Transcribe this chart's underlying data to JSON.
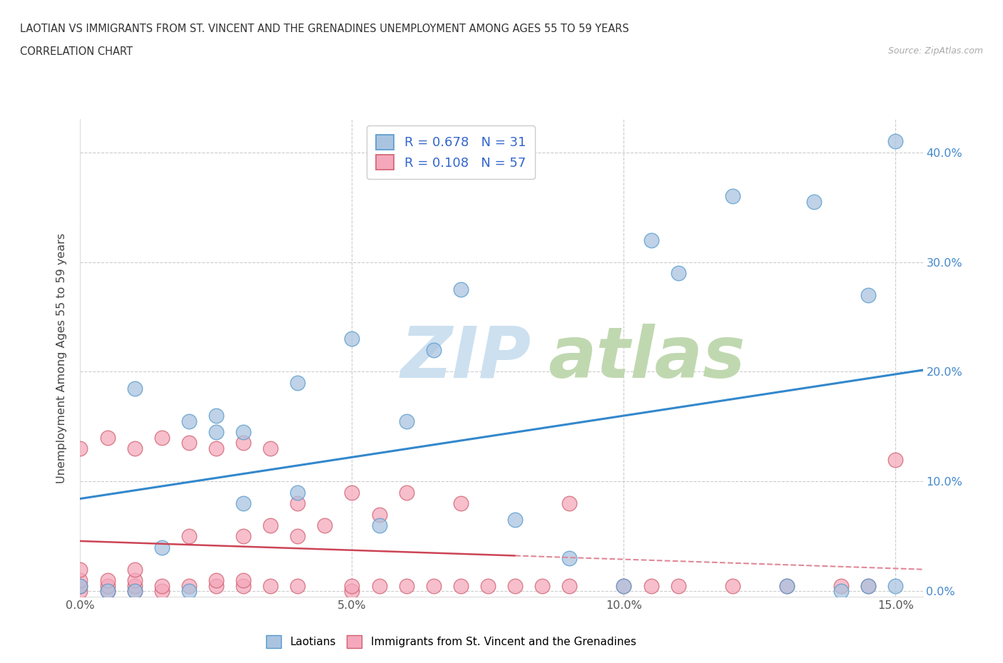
{
  "title_line1": "LAOTIAN VS IMMIGRANTS FROM ST. VINCENT AND THE GRENADINES UNEMPLOYMENT AMONG AGES 55 TO 59 YEARS",
  "title_line2": "CORRELATION CHART",
  "source": "Source: ZipAtlas.com",
  "ylabel": "Unemployment Among Ages 55 to 59 years",
  "xlim": [
    0.0,
    0.155
  ],
  "ylim": [
    -0.005,
    0.43
  ],
  "xticks": [
    0.0,
    0.05,
    0.1,
    0.15
  ],
  "xticklabels": [
    "0.0%",
    "5.0%",
    "10.0%",
    "15.0%"
  ],
  "yticks": [
    0.0,
    0.1,
    0.2,
    0.3,
    0.4
  ],
  "yticklabels": [
    "0.0%",
    "10.0%",
    "20.0%",
    "30.0%",
    "40.0%"
  ],
  "laotian_R": 0.678,
  "laotian_N": 31,
  "svg_R": 0.108,
  "svg_N": 57,
  "laotian_color": "#aac4e0",
  "svg_color": "#f5a8bc",
  "laotian_edge_color": "#5599cc",
  "svg_edge_color": "#d06070",
  "laotian_line_color": "#3388cc",
  "svg_line_color": "#cc4455",
  "svg_dashed_color": "#e08898",
  "watermark_zip_color": "#cce0f0",
  "watermark_atlas_color": "#c0d8b0",
  "laotian_scatter_x": [
    0.0,
    0.005,
    0.01,
    0.01,
    0.015,
    0.02,
    0.02,
    0.025,
    0.025,
    0.03,
    0.03,
    0.04,
    0.04,
    0.05,
    0.055,
    0.06,
    0.065,
    0.07,
    0.08,
    0.09,
    0.1,
    0.105,
    0.11,
    0.12,
    0.13,
    0.135,
    0.14,
    0.145,
    0.145,
    0.15,
    0.15
  ],
  "laotian_scatter_y": [
    0.005,
    0.0,
    0.0,
    0.185,
    0.04,
    0.0,
    0.155,
    0.145,
    0.16,
    0.08,
    0.145,
    0.09,
    0.19,
    0.23,
    0.06,
    0.155,
    0.22,
    0.275,
    0.065,
    0.03,
    0.005,
    0.32,
    0.29,
    0.36,
    0.005,
    0.355,
    0.0,
    0.27,
    0.005,
    0.005,
    0.41
  ],
  "svg_scatter_x": [
    0.0,
    0.0,
    0.0,
    0.0,
    0.0,
    0.005,
    0.005,
    0.005,
    0.005,
    0.01,
    0.01,
    0.01,
    0.01,
    0.01,
    0.015,
    0.015,
    0.015,
    0.02,
    0.02,
    0.02,
    0.025,
    0.025,
    0.025,
    0.03,
    0.03,
    0.03,
    0.03,
    0.035,
    0.035,
    0.035,
    0.04,
    0.04,
    0.04,
    0.045,
    0.05,
    0.05,
    0.05,
    0.055,
    0.055,
    0.06,
    0.06,
    0.065,
    0.07,
    0.07,
    0.075,
    0.08,
    0.085,
    0.09,
    0.09,
    0.1,
    0.105,
    0.11,
    0.12,
    0.13,
    0.14,
    0.145,
    0.15
  ],
  "svg_scatter_y": [
    0.0,
    0.005,
    0.01,
    0.02,
    0.13,
    0.0,
    0.005,
    0.01,
    0.14,
    0.0,
    0.005,
    0.01,
    0.02,
    0.13,
    0.0,
    0.005,
    0.14,
    0.005,
    0.05,
    0.135,
    0.005,
    0.01,
    0.13,
    0.005,
    0.01,
    0.05,
    0.135,
    0.005,
    0.06,
    0.13,
    0.005,
    0.05,
    0.08,
    0.06,
    0.0,
    0.005,
    0.09,
    0.005,
    0.07,
    0.005,
    0.09,
    0.005,
    0.005,
    0.08,
    0.005,
    0.005,
    0.005,
    0.005,
    0.08,
    0.005,
    0.005,
    0.005,
    0.005,
    0.005,
    0.005,
    0.005,
    0.12
  ]
}
